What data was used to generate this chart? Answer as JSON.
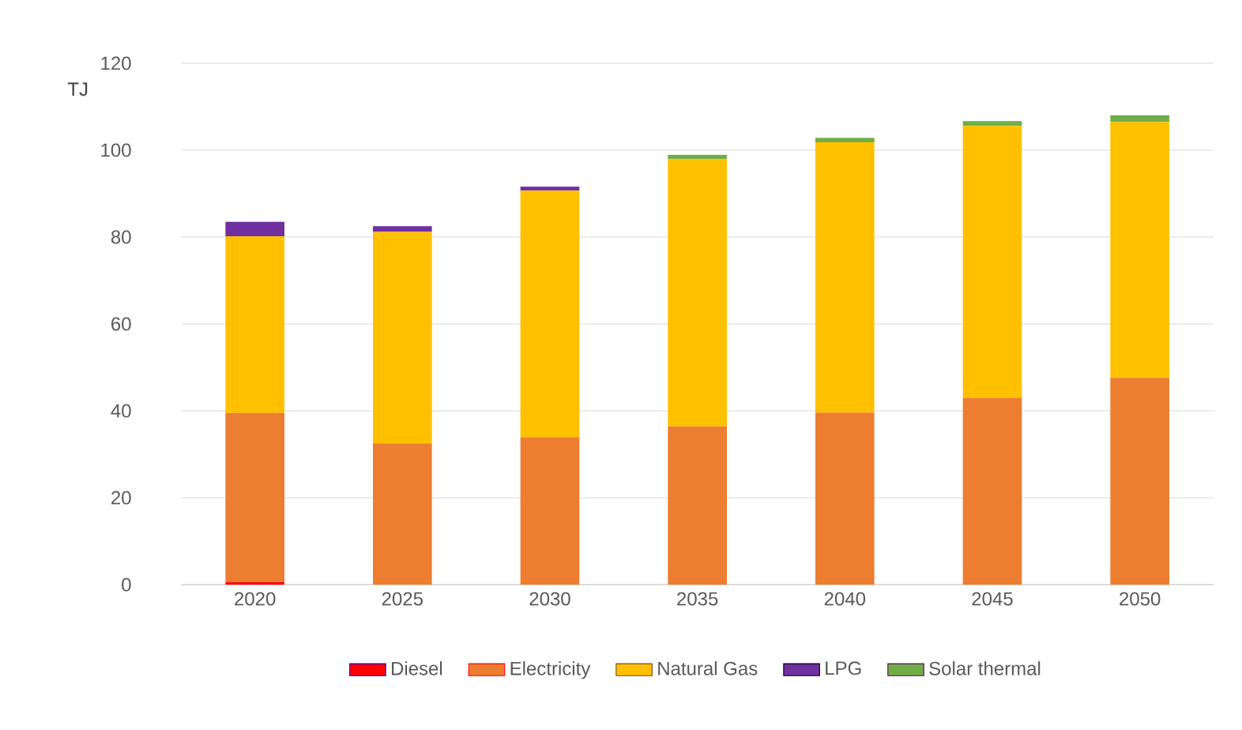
{
  "chart_data": {
    "type": "bar",
    "stacked": true,
    "ylabel": "TJ",
    "categories": [
      "2020",
      "2025",
      "2030",
      "2035",
      "2040",
      "2045",
      "2050"
    ],
    "series": [
      {
        "name": "Diesel",
        "color": "#ff0000",
        "values": [
          0.6,
          0,
          0,
          0,
          0,
          0,
          0
        ]
      },
      {
        "name": "Electricity",
        "color": "#ed7d31",
        "values": [
          38.9,
          32.5,
          33.9,
          36.4,
          39.6,
          43.0,
          47.6
        ]
      },
      {
        "name": "Natural Gas",
        "color": "#ffc000",
        "values": [
          40.7,
          48.7,
          56.8,
          61.5,
          62.2,
          62.6,
          58.9
        ]
      },
      {
        "name": "LPG",
        "color": "#7030a0",
        "values": [
          3.3,
          1.3,
          0.9,
          0,
          0,
          0,
          0
        ]
      },
      {
        "name": "Solar thermal",
        "color": "#70ad47",
        "values": [
          0,
          0,
          0,
          1.0,
          1.0,
          1.1,
          1.5
        ]
      }
    ],
    "ylim": [
      0,
      120
    ],
    "yticks": [
      0,
      20,
      40,
      60,
      80,
      100,
      120
    ],
    "grid": "y",
    "legend": "bottom"
  }
}
